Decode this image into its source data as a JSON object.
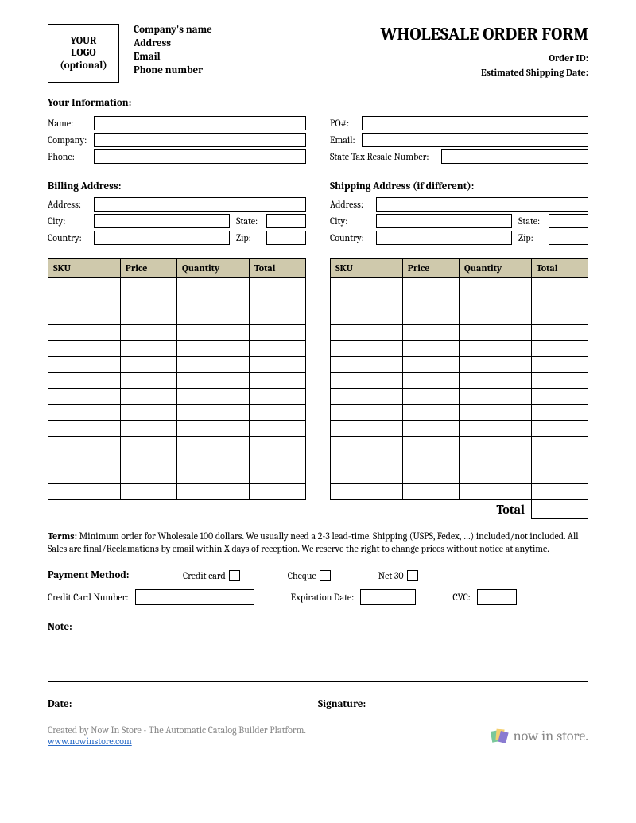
{
  "header": {
    "logo_line1": "YOUR",
    "logo_line2": "LOGO",
    "logo_line3": "(optional)",
    "company_name": "Company's name",
    "address": "Address",
    "email": "Email",
    "phone": "Phone number",
    "title": "WHOLESALE ORDER FORM",
    "order_id_label": "Order ID:",
    "est_ship_label": "Estimated Shipping Date:"
  },
  "your_info": {
    "heading": "Your Information:",
    "name_label": "Name:",
    "company_label": "Company:",
    "phone_label": "Phone:",
    "po_label": "PO#:",
    "email_label": "Email:",
    "resale_label": "State Tax Resale Number:"
  },
  "billing": {
    "heading": "Billing Address:",
    "address_label": "Address:",
    "city_label": "City:",
    "state_label": "State:",
    "country_label": "Country:",
    "zip_label": "Zip:"
  },
  "shipping": {
    "heading": "Shipping Address (if different):",
    "address_label": "Address:",
    "city_label": "City:",
    "state_label": "State:",
    "country_label": "Country:",
    "zip_label": "Zip:"
  },
  "items_table": {
    "columns": [
      "SKU",
      "Price",
      "Quantity",
      "Total"
    ],
    "col_widths_pct": [
      28,
      22,
      28,
      22
    ],
    "header_bg": "#cfc9ac",
    "border_color": "#000000",
    "row_count": 14,
    "total_label": "Total"
  },
  "terms": {
    "label": "Terms:",
    "text": "Minimum order for Wholesale 100 dollars. We usually need a 2-3 lead-time. Shipping (USPS, Fedex, …) included/not included. All Sales are final/Reclamations by email within X days of reception. We reserve the right to change prices without notice at anytime."
  },
  "payment": {
    "heading": "Payment Method:",
    "credit_card_label": "Credit card",
    "cheque_label": "Cheque",
    "net30_label": "Net 30",
    "cc_number_label": "Credit Card Number:",
    "exp_label": "Expiration Date:",
    "cvc_label": "CVC:"
  },
  "note": {
    "label": "Note:"
  },
  "signoff": {
    "date_label": "Date:",
    "signature_label": "Signature:"
  },
  "footer": {
    "text": "Created by Now In Store - The Automatic Catalog Builder Platform.",
    "url": "www.nowinstore.com",
    "brand": "now in store."
  },
  "colors": {
    "page_bg": "#ffffff",
    "text": "#000000",
    "table_header_bg": "#cfc9ac",
    "footer_text": "#888888",
    "link": "#2a6bc7"
  }
}
